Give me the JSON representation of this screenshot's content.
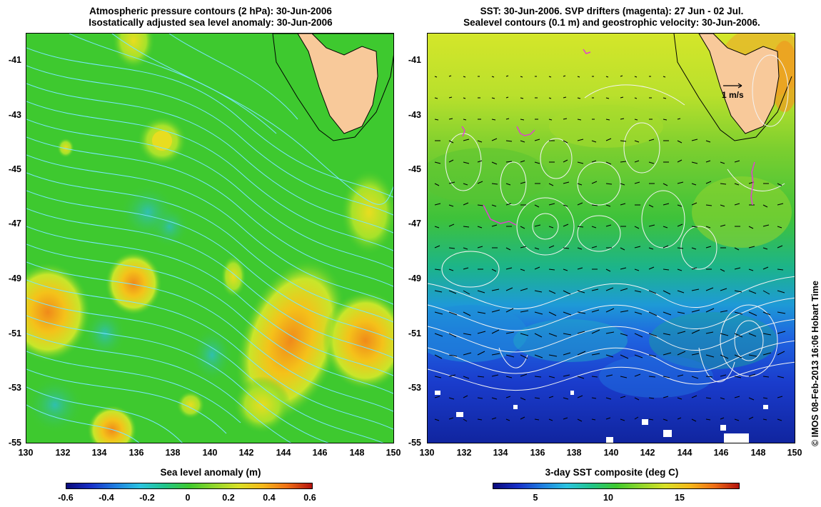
{
  "left_panel": {
    "title_line1": "Atmospheric pressure contours (2 hPa): 30-Jun-2006",
    "title_line2": "Isostatically adjusted sea level anomaly: 30-Jun-2006",
    "colorbar_title": "Sea level anomaly (m)",
    "colorbar_labels": [
      "-0.6",
      "-0.4",
      "-0.2",
      "0",
      "0.2",
      "0.4",
      "0.6"
    ]
  },
  "right_panel": {
    "title_line1": "SST: 30-Jun-2006. SVP drifters (magenta): 27 Jun - 02 Jul.",
    "title_line2": "Sealevel contours (0.1 m) and geostrophic velocity: 30-Jun-2006.",
    "colorbar_title": "3-day SST composite (deg C)",
    "colorbar_labels": [
      "5",
      "10",
      "15"
    ],
    "velocity_scale_label": "1 m/s"
  },
  "axes": {
    "lat_labels": [
      "-41",
      "-43",
      "-45",
      "-47",
      "-49",
      "-51",
      "-53",
      "-55"
    ],
    "lon_labels": [
      "130",
      "132",
      "134",
      "136",
      "138",
      "140",
      "142",
      "144",
      "146",
      "148",
      "150"
    ]
  },
  "credit": "© IMOS 08-Feb-2013 16:06 Hobart Time",
  "colors": {
    "land": "#f8c99a",
    "sla_background": "#3ec92f",
    "sst_warm": "#d8e826",
    "sst_cold": "#1f3fd6",
    "contour_left": "#79e6ff",
    "contour_right": "#f3f3f3",
    "drifter": "#e040d0"
  }
}
